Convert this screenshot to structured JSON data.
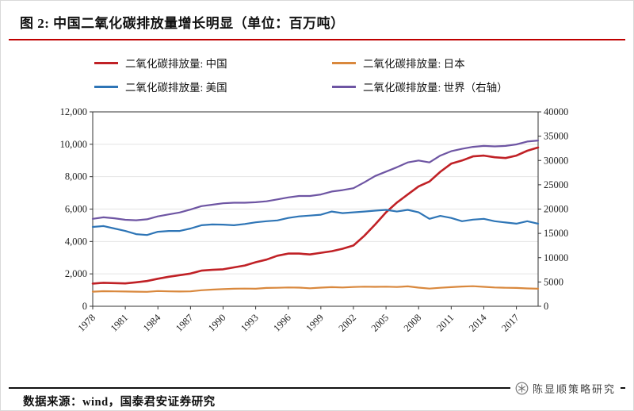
{
  "header": {
    "title": "图 2:  中国二氧化碳排放量增长明显（单位：百万吨）"
  },
  "legend": {
    "items": [
      {
        "label": "二氧化碳排放量: 中国",
        "color": "#C02126"
      },
      {
        "label": "二氧化碳排放量: 日本",
        "color": "#D9883D"
      },
      {
        "label": "二氧化碳排放量: 美国",
        "color": "#2E75B6"
      },
      {
        "label": "二氧化碳排放量: 世界（右轴）",
        "color": "#6E55A3"
      }
    ]
  },
  "footer": {
    "source": "数据来源：wind，国泰君安证券研究",
    "watermark": "陈显顺策略研究"
  },
  "chart_data": {
    "type": "line",
    "title": "中国二氧化碳排放量增长明显（单位：百万吨）",
    "x": [
      1978,
      1979,
      1980,
      1981,
      1982,
      1983,
      1984,
      1985,
      1986,
      1987,
      1988,
      1989,
      1990,
      1991,
      1992,
      1993,
      1994,
      1995,
      1996,
      1997,
      1998,
      1999,
      2000,
      2001,
      2002,
      2003,
      2004,
      2005,
      2006,
      2007,
      2008,
      2009,
      2010,
      2011,
      2012,
      2013,
      2014,
      2015,
      2016,
      2017,
      2018,
      2019
    ],
    "x_ticks": [
      1978,
      1981,
      1984,
      1987,
      1990,
      1993,
      1996,
      1999,
      2002,
      2005,
      2008,
      2011,
      2014,
      2017
    ],
    "left_axis": {
      "min": 0,
      "max": 12000,
      "ticks": [
        0,
        2000,
        4000,
        6000,
        8000,
        10000,
        12000
      ]
    },
    "right_axis": {
      "min": 0,
      "max": 40000,
      "ticks": [
        0,
        5000,
        10000,
        15000,
        20000,
        25000,
        30000,
        35000,
        40000
      ]
    },
    "grid": true,
    "legend_position": "top",
    "series": [
      {
        "name": "二氧化碳排放量: 中国",
        "axis": "left",
        "color": "#C02126",
        "width": 2.6,
        "values": [
          1400,
          1450,
          1430,
          1410,
          1480,
          1560,
          1700,
          1820,
          1920,
          2020,
          2200,
          2250,
          2280,
          2400,
          2520,
          2720,
          2880,
          3120,
          3250,
          3250,
          3200,
          3300,
          3400,
          3550,
          3750,
          4350,
          5050,
          5800,
          6400,
          6900,
          7400,
          7700,
          8300,
          8800,
          9000,
          9250,
          9300,
          9200,
          9150,
          9300,
          9600,
          9800
        ]
      },
      {
        "name": "二氧化碳排放量: 日本",
        "axis": "left",
        "color": "#D9883D",
        "width": 2.2,
        "values": [
          900,
          930,
          920,
          910,
          900,
          890,
          940,
          920,
          910,
          920,
          990,
          1030,
          1060,
          1080,
          1090,
          1080,
          1130,
          1140,
          1160,
          1150,
          1110,
          1150,
          1180,
          1160,
          1190,
          1210,
          1200,
          1210,
          1190,
          1230,
          1150,
          1090,
          1140,
          1180,
          1220,
          1240,
          1200,
          1160,
          1140,
          1130,
          1100,
          1080
        ]
      },
      {
        "name": "二氧化碳排放量: 美国",
        "axis": "left",
        "color": "#2E75B6",
        "width": 2.2,
        "values": [
          4900,
          4950,
          4800,
          4650,
          4450,
          4400,
          4600,
          4650,
          4650,
          4800,
          5000,
          5050,
          5040,
          5000,
          5080,
          5180,
          5250,
          5300,
          5450,
          5550,
          5600,
          5650,
          5850,
          5750,
          5800,
          5850,
          5900,
          5950,
          5850,
          5950,
          5800,
          5400,
          5580,
          5450,
          5250,
          5350,
          5400,
          5250,
          5170,
          5100,
          5250,
          5100
        ]
      },
      {
        "name": "二氧化碳排放量: 世界（右轴）",
        "axis": "right",
        "color": "#6E55A3",
        "width": 2.2,
        "values": [
          18000,
          18300,
          18100,
          17800,
          17700,
          17900,
          18500,
          18900,
          19300,
          19900,
          20600,
          20900,
          21200,
          21300,
          21300,
          21400,
          21600,
          22000,
          22400,
          22700,
          22700,
          23000,
          23600,
          23900,
          24300,
          25500,
          26800,
          27700,
          28600,
          29600,
          30000,
          29600,
          31000,
          31900,
          32400,
          32800,
          33000,
          32900,
          33000,
          33300,
          33900,
          34100
        ]
      }
    ]
  }
}
